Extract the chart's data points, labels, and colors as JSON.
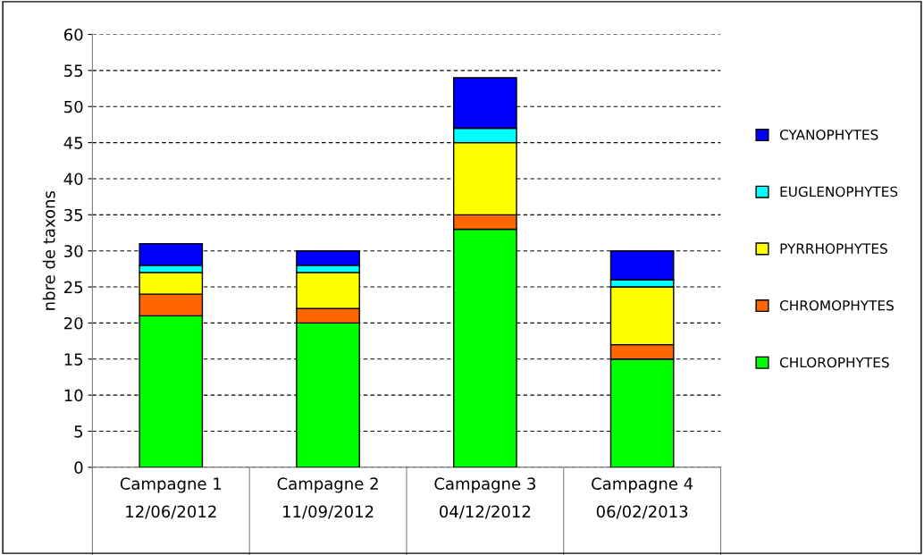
{
  "chart_data": {
    "type": "bar",
    "stacked": true,
    "ylabel": "nbre de taxons",
    "categories": [
      "Campagne 1\n12/06/2012",
      "Campagne 2\n11/09/2012",
      "Campagne 3\n04/12/2012",
      "Campagne 4\n06/02/2013"
    ],
    "series": [
      {
        "name": "CHLOROPHYTES",
        "color": "#00ff00",
        "values": [
          21,
          20,
          33,
          15
        ]
      },
      {
        "name": "CHROMOPHYTES",
        "color": "#ff6600",
        "values": [
          3,
          2,
          2,
          2
        ]
      },
      {
        "name": "PYRRHOPHYTES",
        "color": "#ffff00",
        "values": [
          3,
          5,
          10,
          8
        ]
      },
      {
        "name": "EUGLENOPHYTES",
        "color": "#00ffff",
        "values": [
          1,
          1,
          2,
          1
        ]
      },
      {
        "name": "CYANOPHYTES",
        "color": "#0000ff",
        "values": [
          3,
          2,
          7,
          4
        ]
      }
    ],
    "ylim": [
      0,
      60
    ],
    "yticks": [
      0,
      5,
      10,
      15,
      20,
      25,
      30,
      35,
      40,
      45,
      50,
      55,
      60
    ],
    "grid": "y",
    "legend": "right"
  }
}
